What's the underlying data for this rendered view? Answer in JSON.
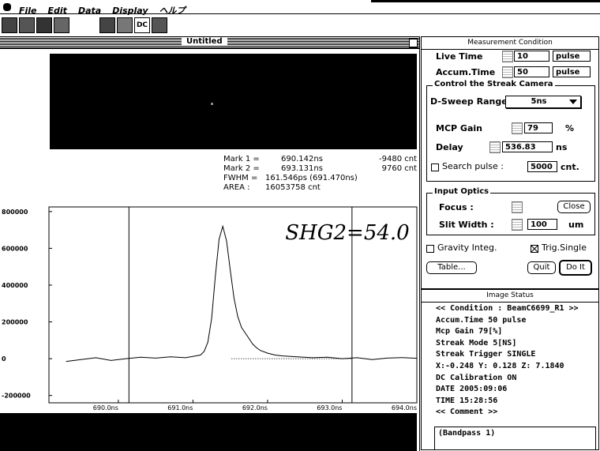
{
  "menu": {
    "items": [
      "File",
      "Edit",
      "Data",
      "Display",
      "ヘルプ"
    ]
  },
  "toolbar": {
    "button": "DC"
  },
  "window": {
    "title": "Untitled"
  },
  "markers": {
    "rows": [
      [
        "Mark 1 =",
        "690.142ns",
        "-9480 cnt"
      ],
      [
        "Mark 2 =",
        "693.131ns",
        "9760 cnt"
      ],
      [
        "FWHM =",
        "161.546ps (691.470ns)"
      ],
      [
        "AREA :",
        "16053758 cnt"
      ]
    ]
  },
  "chart_data": {
    "type": "line",
    "annotation": "SHG2=54.0",
    "color": "#000000",
    "x": [
      689.3,
      689.5,
      689.7,
      689.9,
      690.1,
      690.3,
      690.5,
      690.7,
      690.9,
      691.0,
      691.1,
      691.15,
      691.2,
      691.25,
      691.3,
      691.35,
      691.4,
      691.45,
      691.5,
      691.55,
      691.6,
      691.65,
      691.7,
      691.75,
      691.8,
      691.85,
      691.9,
      692.0,
      692.1,
      692.2,
      692.4,
      692.6,
      692.8,
      693.0,
      693.2,
      693.4,
      693.6,
      693.8,
      694.0
    ],
    "values": [
      -15000,
      -5000,
      5000,
      -10000,
      0,
      8000,
      3000,
      10000,
      5000,
      12000,
      20000,
      40000,
      90000,
      220000,
      450000,
      650000,
      720000,
      640000,
      480000,
      330000,
      230000,
      170000,
      140000,
      110000,
      80000,
      60000,
      45000,
      30000,
      20000,
      15000,
      10000,
      5000,
      8000,
      0,
      5000,
      -5000,
      3000,
      6000,
      2000
    ],
    "xlim": [
      689.07,
      694.0
    ],
    "ylim": [
      -240000,
      825000
    ],
    "xticks": [
      {
        "value": 690,
        "label": "690.0ns"
      },
      {
        "value": 691,
        "label": "691.0ns"
      },
      {
        "value": 692,
        "label": "692.0ns"
      },
      {
        "value": 693,
        "label": "693.0ns"
      },
      {
        "value": 694,
        "label": "694.0ns"
      }
    ],
    "yticks": [
      800000,
      600000,
      400000,
      200000,
      0,
      -200000
    ]
  },
  "measurement": {
    "title": "Measurement Condition",
    "live_time": {
      "label": "Live Time",
      "value": "10",
      "unit": "pulse"
    },
    "accum_time": {
      "label": "Accum.Time",
      "value": "50",
      "unit": "pulse"
    },
    "streak": {
      "title": "Control the Streak Camera",
      "sweep_label": "D-Sweep Range",
      "sweep_value": "5ns",
      "mcp_label": "MCP Gain",
      "mcp_value": "79",
      "mcp_unit": "%",
      "delay_label": "Delay",
      "delay_value": "536.83",
      "delay_unit": "ns",
      "search_label": "Search pulse :",
      "search_value": "5000",
      "search_unit": "cnt."
    },
    "optics": {
      "title": "Input Optics",
      "focus_label": "Focus :",
      "focus_value": "Close",
      "slit_label": "Slit Width :",
      "slit_value": "100",
      "slit_unit": "um"
    },
    "gravity": "Gravity Integ.",
    "trig": "Trig.Single",
    "buttons": [
      "Table...",
      "Quit",
      "Do It"
    ]
  },
  "image_status": {
    "title": "Image Status",
    "lines": [
      "<< Condition : BeamC6699_R1 >>",
      "Accum.Time  50 pulse",
      "Mcp Gain  79[%]",
      "Streak Mode  5[NS]",
      "Streak Trigger SINGLE",
      "X:-0.248 Y: 0.128 Z: 7.1840",
      "DC Calibration ON",
      "DATE 2005:09:06",
      "TIME 15:28:56",
      "<< Comment >>"
    ],
    "comment": "(Bandpass 1)"
  }
}
